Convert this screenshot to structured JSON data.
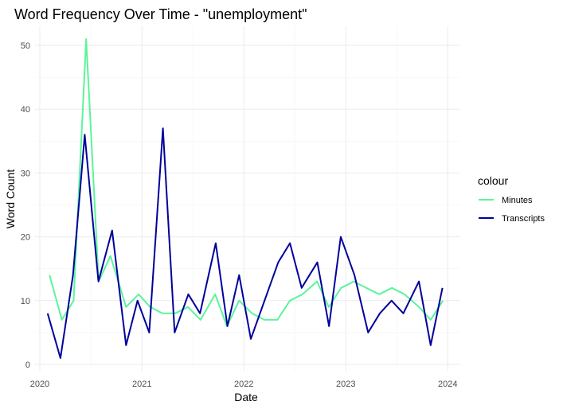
{
  "chart_data": {
    "type": "line",
    "title": "Word Frequency Over Time - \"unemployment\"",
    "xlabel": "Date",
    "ylabel": "Word Count",
    "x_type": "date",
    "xlim": [
      "2019-12-15",
      "2024-02-15"
    ],
    "ylim": [
      -1,
      53
    ],
    "x_ticks": [
      "2020-01-01",
      "2021-01-01",
      "2022-01-01",
      "2023-01-01",
      "2024-01-01"
    ],
    "x_tick_labels": [
      "2020",
      "2021",
      "2022",
      "2023",
      "2024"
    ],
    "y_ticks": [
      0,
      10,
      20,
      30,
      40,
      50
    ],
    "grid": true,
    "legend": {
      "title": "colour",
      "position": "right"
    },
    "series": [
      {
        "name": "Minutes",
        "color": "#5cf49b",
        "points": [
          [
            "2020-02-05",
            14
          ],
          [
            "2020-03-20",
            7
          ],
          [
            "2020-05-01",
            10
          ],
          [
            "2020-06-15",
            51
          ],
          [
            "2020-07-30",
            13
          ],
          [
            "2020-09-10",
            17
          ],
          [
            "2020-11-05",
            9
          ],
          [
            "2020-12-20",
            11
          ],
          [
            "2021-01-30",
            9
          ],
          [
            "2021-03-15",
            8
          ],
          [
            "2021-04-30",
            8
          ],
          [
            "2021-06-15",
            9
          ],
          [
            "2021-07-30",
            7
          ],
          [
            "2021-09-20",
            11
          ],
          [
            "2021-11-01",
            6
          ],
          [
            "2021-12-15",
            10
          ],
          [
            "2022-01-30",
            8
          ],
          [
            "2022-03-15",
            7
          ],
          [
            "2022-05-01",
            7
          ],
          [
            "2022-06-15",
            10
          ],
          [
            "2022-07-30",
            11
          ],
          [
            "2022-09-20",
            13
          ],
          [
            "2022-11-01",
            9
          ],
          [
            "2022-12-15",
            12
          ],
          [
            "2023-01-30",
            13
          ],
          [
            "2023-03-15",
            12
          ],
          [
            "2023-05-01",
            11
          ],
          [
            "2023-06-15",
            12
          ],
          [
            "2023-07-30",
            11
          ],
          [
            "2023-09-20",
            9
          ],
          [
            "2023-11-01",
            7
          ],
          [
            "2023-12-15",
            10
          ]
        ]
      },
      {
        "name": "Transcripts",
        "color": "#00009b",
        "points": [
          [
            "2020-01-29",
            8
          ],
          [
            "2020-03-15",
            1
          ],
          [
            "2020-04-29",
            14
          ],
          [
            "2020-06-10",
            36
          ],
          [
            "2020-07-29",
            13
          ],
          [
            "2020-09-16",
            21
          ],
          [
            "2020-11-05",
            3
          ],
          [
            "2020-12-16",
            10
          ],
          [
            "2021-01-27",
            5
          ],
          [
            "2021-03-17",
            37
          ],
          [
            "2021-04-28",
            5
          ],
          [
            "2021-06-16",
            11
          ],
          [
            "2021-07-28",
            8
          ],
          [
            "2021-09-22",
            19
          ],
          [
            "2021-11-03",
            6
          ],
          [
            "2021-12-15",
            14
          ],
          [
            "2022-01-26",
            4
          ],
          [
            "2022-03-16",
            10
          ],
          [
            "2022-05-04",
            16
          ],
          [
            "2022-06-15",
            19
          ],
          [
            "2022-07-27",
            12
          ],
          [
            "2022-09-21",
            16
          ],
          [
            "2022-11-02",
            6
          ],
          [
            "2022-12-14",
            20
          ],
          [
            "2023-02-01",
            14
          ],
          [
            "2023-03-22",
            5
          ],
          [
            "2023-05-03",
            8
          ],
          [
            "2023-06-14",
            10
          ],
          [
            "2023-07-26",
            8
          ],
          [
            "2023-09-20",
            13
          ],
          [
            "2023-11-01",
            3
          ],
          [
            "2023-12-13",
            12
          ]
        ]
      }
    ]
  }
}
